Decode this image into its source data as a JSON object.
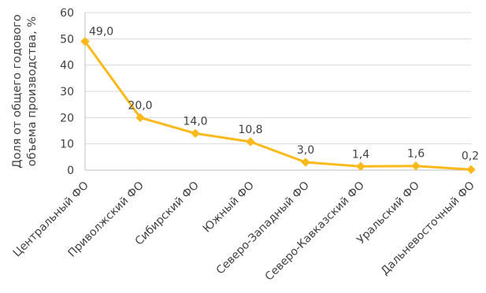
{
  "chart_data": {
    "type": "line",
    "title": "",
    "xlabel": "",
    "ylabel_lines": [
      "Доля от общего годового",
      "объема производства, %"
    ],
    "categories": [
      "Центральный ФО",
      "Приволжский ФО",
      "Сибирский ФО",
      "Южный ФО",
      "Северо-Западный ФО",
      "Северо-Кавказский ФО",
      "Уральский ФО",
      "Дальневосточный ФО"
    ],
    "series": [
      {
        "values": [
          49.0,
          20.0,
          14.0,
          10.8,
          3.0,
          1.4,
          1.6,
          0.2
        ],
        "data_labels": [
          "49,0",
          "20,0",
          "14,0",
          "10,8",
          "3,0",
          "1,4",
          "1,6",
          "0,2"
        ],
        "color": "#FBB91B",
        "marker": "diamond"
      }
    ],
    "ylim": [
      0,
      60
    ],
    "yticks": [
      "0",
      "10",
      "20",
      "30",
      "40",
      "50",
      "60"
    ],
    "grid": true,
    "legend": false,
    "colors": {
      "grid": "#D9D9D9",
      "axis": "#BFBFBF",
      "text": "#404040"
    }
  }
}
